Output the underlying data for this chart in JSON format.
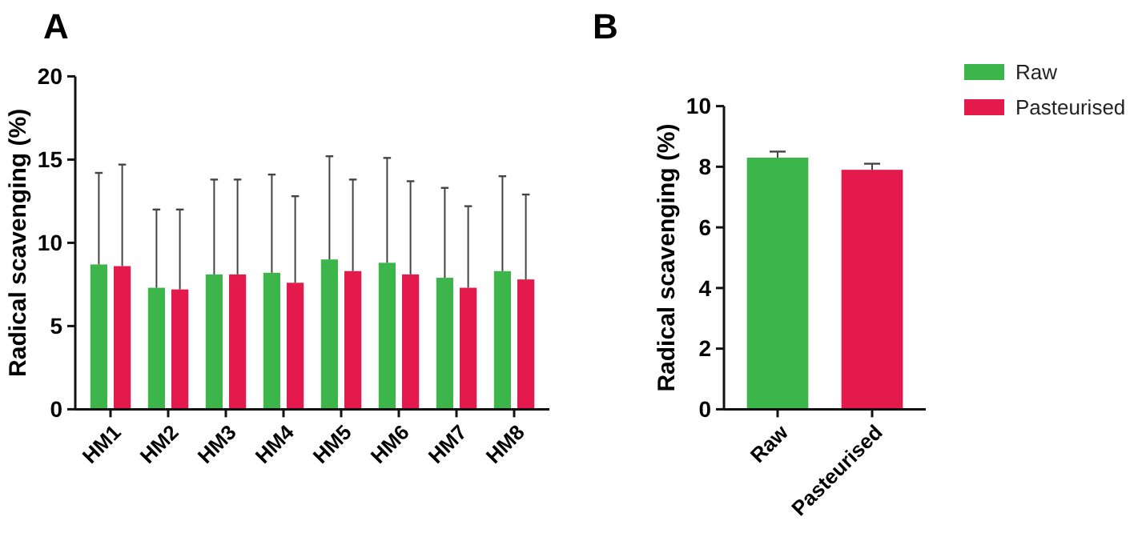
{
  "chart_data": [
    {
      "type": "bar",
      "title": "A",
      "ylabel": "Radical scavenging (%)",
      "categories": [
        "HM1",
        "HM2",
        "HM3",
        "HM4",
        "HM5",
        "HM6",
        "HM7",
        "HM8"
      ],
      "ylim": [
        0,
        20
      ],
      "yticks": [
        0,
        5,
        10,
        15,
        20
      ],
      "legend": "right",
      "series": [
        {
          "name": "Raw",
          "color": "#3cb54a",
          "values": [
            8.7,
            7.3,
            8.1,
            8.2,
            9.0,
            8.8,
            7.9,
            8.3
          ],
          "errors": [
            [
              8.7,
              14.2
            ],
            [
              7.3,
              12.0
            ],
            [
              8.1,
              13.8
            ],
            [
              8.2,
              14.1
            ],
            [
              9.0,
              15.2
            ],
            [
              8.8,
              15.1
            ],
            [
              7.9,
              13.3
            ],
            [
              8.3,
              14.0
            ]
          ]
        },
        {
          "name": "Pasteurised",
          "color": "#e31a4b",
          "values": [
            8.6,
            7.2,
            8.1,
            7.6,
            8.3,
            8.1,
            7.3,
            7.8
          ],
          "errors": [
            [
              8.6,
              14.7
            ],
            [
              7.2,
              12.0
            ],
            [
              8.1,
              13.8
            ],
            [
              7.6,
              12.8
            ],
            [
              8.3,
              13.8
            ],
            [
              8.1,
              13.7
            ],
            [
              7.3,
              12.2
            ],
            [
              7.8,
              12.9
            ]
          ]
        }
      ]
    },
    {
      "type": "bar",
      "title": "B",
      "ylabel": "Radical scavenging (%)",
      "categories": [
        "Raw",
        "Pasteurised"
      ],
      "ylim": [
        0,
        10
      ],
      "yticks": [
        0,
        2,
        4,
        6,
        8,
        10
      ],
      "values": [
        8.3,
        7.9
      ],
      "colors": [
        "#3cb54a",
        "#e31a4b"
      ],
      "errors": [
        [
          8.3,
          8.5
        ],
        [
          7.9,
          8.1
        ]
      ]
    }
  ]
}
